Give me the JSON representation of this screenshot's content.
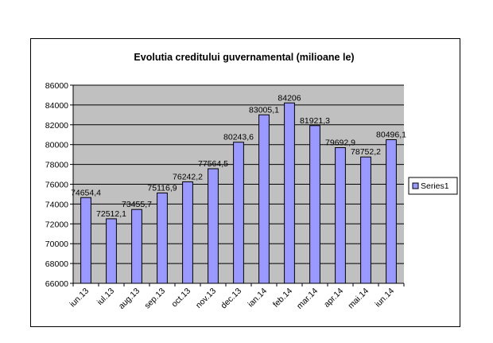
{
  "chart_data": {
    "type": "bar",
    "title": "Evolutia creditului guvernamental (milioane le)",
    "xlabel": "",
    "ylabel": "",
    "categories": [
      "iun.13",
      "iul.13",
      "aug.13",
      "sep.13",
      "oct.13",
      "nov.13",
      "dec.13",
      "ian.14",
      "feb.14",
      "mar.14",
      "apr.14",
      "mai.14",
      "iun.14"
    ],
    "series": [
      {
        "name": "Series1",
        "values": [
          74654.4,
          72512.1,
          73455.7,
          75116.9,
          76242.2,
          77564.5,
          80243.6,
          83005.1,
          84206,
          81921.3,
          79692.9,
          78752.2,
          80496.1
        ],
        "labels": [
          "74654,4",
          "72512,1",
          "73455,7",
          "75116,9",
          "76242,2",
          "77564,5",
          "80243,6",
          "83005,1",
          "84206",
          "81921,3",
          "79692,9",
          "78752,2",
          "80496,1"
        ]
      }
    ],
    "ylim": [
      66000,
      86000
    ],
    "yticks": [
      66000,
      68000,
      70000,
      72000,
      74000,
      76000,
      78000,
      80000,
      82000,
      84000,
      86000
    ],
    "grid": true,
    "legend_position": "right",
    "colors": {
      "plot_background": "#c0c0c0",
      "bar_fill": "#9999ff",
      "bar_stroke": "#000000",
      "gridline": "#000000"
    }
  }
}
